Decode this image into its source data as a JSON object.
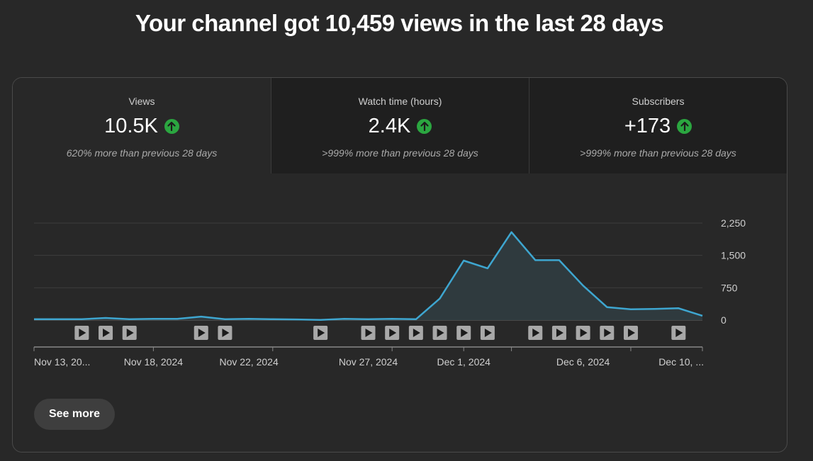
{
  "headline": "Your channel got 10,459 views in the last 28 days",
  "tabs": [
    {
      "label": "Views",
      "value": "10.5K",
      "compare": "620% more than previous 28 days",
      "trend_icon": "arrow-up-circle-icon",
      "active": true
    },
    {
      "label": "Watch time (hours)",
      "value": "2.4K",
      "compare": ">999% more than previous 28 days",
      "trend_icon": "arrow-up-circle-icon",
      "active": false
    },
    {
      "label": "Subscribers",
      "value": "+173",
      "compare": ">999% more than previous 28 days",
      "trend_icon": "arrow-up-circle-icon",
      "active": false
    }
  ],
  "see_more_label": "See more",
  "colors": {
    "background": "#282828",
    "inactive_tab": "#1f1f1f",
    "line": "#3ea6d0",
    "trend_up": "#2ba640",
    "video_marker": "#a8a8a8"
  },
  "chart_data": {
    "type": "area",
    "series": [
      {
        "values": [
          20,
          20,
          20,
          50,
          20,
          30,
          30,
          80,
          20,
          30,
          20,
          15,
          5,
          30,
          20,
          30,
          20,
          500,
          1380,
          1200,
          2040,
          1390,
          1390,
          800,
          300,
          250,
          260,
          275,
          100
        ]
      }
    ],
    "ylim": [
      0,
      2250
    ],
    "y_ticks": [
      0,
      750,
      1500,
      2250
    ],
    "y_tick_labels": [
      "0",
      "750",
      "1,500",
      "2,250"
    ],
    "x_tick_labels": [
      {
        "index": 0,
        "label": "Nov 13, 20..."
      },
      {
        "index": 5,
        "label": "Nov 18, 2024"
      },
      {
        "index": 9,
        "label": "Nov 22, 2024"
      },
      {
        "index": 14,
        "label": "Nov 27, 2024"
      },
      {
        "index": 18,
        "label": "Dec 1, 2024"
      },
      {
        "index": 23,
        "label": "Dec 6, 2024"
      },
      {
        "index": 27,
        "label": "Dec 10, ..."
      }
    ],
    "video_markers": [
      2,
      3,
      4,
      7,
      8,
      12,
      14,
      15,
      16,
      17,
      18,
      19,
      21,
      22,
      23,
      24,
      25,
      27
    ],
    "grid": true,
    "y_axis_position": "right"
  }
}
